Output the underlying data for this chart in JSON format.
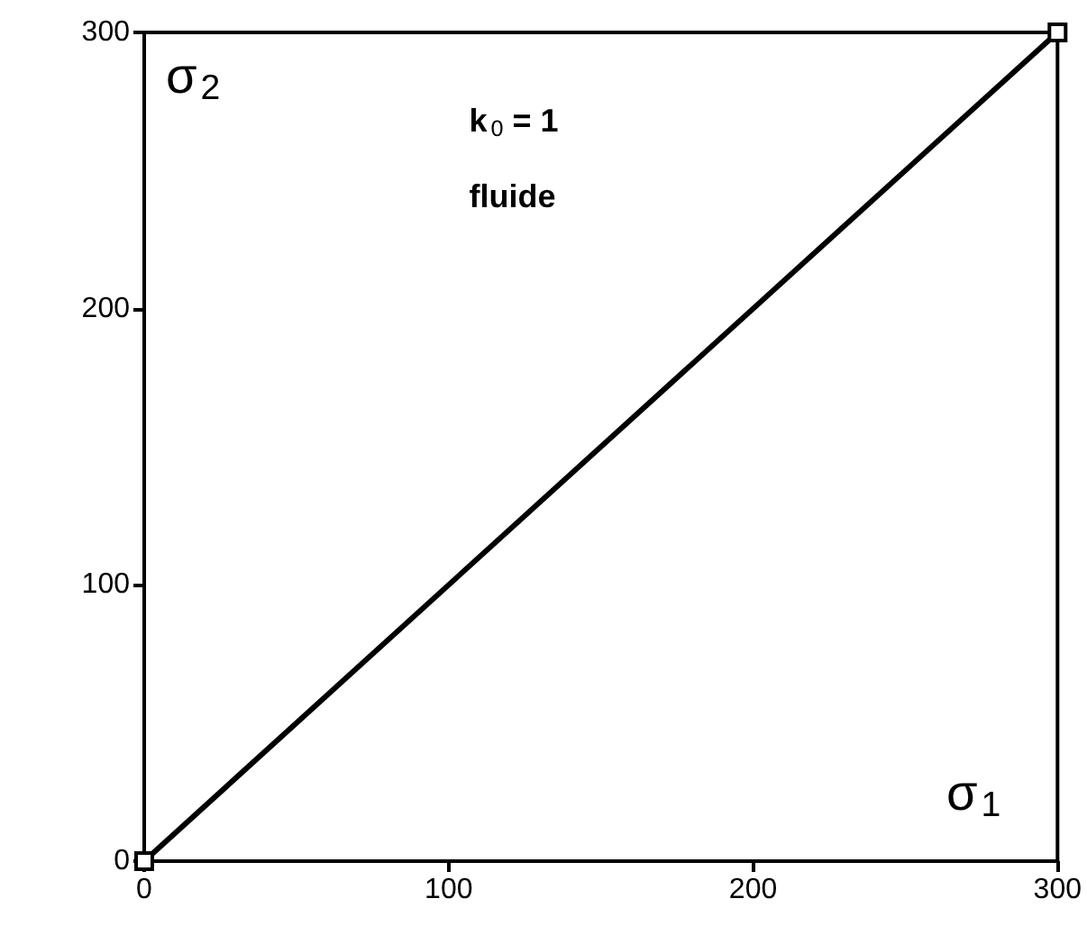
{
  "chart_data": {
    "type": "line",
    "xlabel": "σ$_{1}$",
    "ylabel": "σ$_{2}$",
    "annotations": [
      "k$_{0}$ = 1",
      "fluide"
    ],
    "x": [
      0,
      300
    ],
    "series": [
      {
        "color": "#000000",
        "values": [
          0,
          300
        ]
      }
    ],
    "xlim": [
      0,
      300
    ],
    "ylim": [
      0,
      300
    ],
    "xticks": [
      0,
      100,
      200,
      300
    ],
    "yticks": [
      0,
      100,
      200,
      300
    ],
    "marker": "square",
    "line_style": "solid",
    "grid": false
  }
}
